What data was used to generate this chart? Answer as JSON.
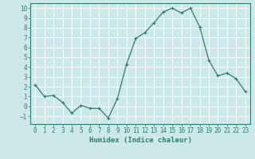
{
  "title": "",
  "xlabel": "Humidex (Indice chaleur)",
  "ylabel": "",
  "x": [
    0,
    1,
    2,
    3,
    4,
    5,
    6,
    7,
    8,
    9,
    10,
    11,
    12,
    13,
    14,
    15,
    16,
    17,
    18,
    19,
    20,
    21,
    22,
    23
  ],
  "y": [
    2.2,
    1.0,
    1.1,
    0.4,
    -0.7,
    0.1,
    -0.2,
    -0.2,
    -1.2,
    0.8,
    4.3,
    6.9,
    7.5,
    8.5,
    9.6,
    10.0,
    9.5,
    10.0,
    8.1,
    4.7,
    3.1,
    3.4,
    2.8,
    1.5
  ],
  "line_color": "#2e7d6e",
  "marker": "+",
  "marker_size": 3,
  "bg_color": "#cce8e8",
  "grid_color": "#ffffff",
  "ylim": [
    -1.8,
    10.5
  ],
  "xlim": [
    -0.5,
    23.5
  ],
  "yticks": [
    -1,
    0,
    1,
    2,
    3,
    4,
    5,
    6,
    7,
    8,
    9,
    10
  ],
  "xticks": [
    0,
    1,
    2,
    3,
    4,
    5,
    6,
    7,
    8,
    9,
    10,
    11,
    12,
    13,
    14,
    15,
    16,
    17,
    18,
    19,
    20,
    21,
    22,
    23
  ],
  "axis_label_color": "#2e7d6e",
  "tick_label_color": "#2e7d6e",
  "xlabel_fontsize": 6.5,
  "tick_fontsize": 5.5
}
